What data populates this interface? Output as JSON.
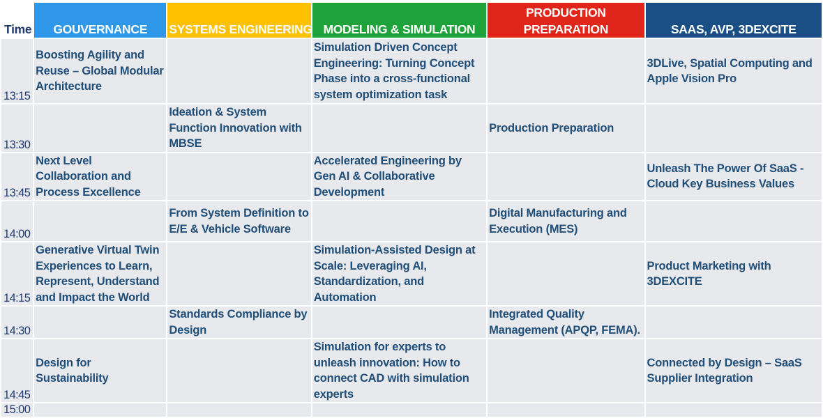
{
  "header": {
    "time": "Time",
    "tracks": [
      {
        "label": "GOUVERNANCE",
        "color": "#2e97e8"
      },
      {
        "label": "SYSTEMS ENGINEERING",
        "color": "#ffc000"
      },
      {
        "label": "MODELING & SIMULATION",
        "color": "#1ea33a"
      },
      {
        "label": "PRODUCTION PREPARATION",
        "color": "#e0251b"
      },
      {
        "label": "SAAS, AVP, 3DEXCITE",
        "color": "#1a4f86"
      }
    ]
  },
  "rows": [
    {
      "time": "13:15",
      "cells": [
        "Boosting Agility and Reuse – Global Modular Architecture",
        "",
        "Simulation Driven Concept Engineering: Turning Concept Phase into a cross-functional system optimization task",
        "",
        "3DLive, Spatial Computing and Apple Vision Pro"
      ]
    },
    {
      "time": "13:30",
      "cells": [
        "",
        "Ideation & System Function Innovation with MBSE",
        "",
        "Production Preparation",
        ""
      ]
    },
    {
      "time": "13:45",
      "cells": [
        "Next Level Collaboration and Process Excellence",
        "",
        "Accelerated Engineering by Gen AI & Collaborative Development",
        "",
        "Unleash The Power Of SaaS - Cloud Key Business Values"
      ]
    },
    {
      "time": "14:00",
      "cells": [
        "",
        "From System Definition to E/E & Vehicle Software",
        "",
        "Digital Manufacturing and Execution (MES)",
        ""
      ]
    },
    {
      "time": "14:15",
      "cells": [
        "Generative Virtual Twin Experiences to Learn, Represent, Understand and Impact the World",
        "",
        "Simulation-Assisted Design at Scale: Leveraging AI, Standardization, and Automation",
        "",
        "Product Marketing with 3DEXCITE"
      ]
    },
    {
      "time": "14:30",
      "cells": [
        "",
        "Standards Compliance by Design",
        "",
        "Integrated Quality Management (APQP, FEMA).",
        ""
      ]
    },
    {
      "time": "14:45",
      "cells": [
        "Design for Sustainability",
        "",
        "Simulation for experts to unleash innovation: How to connect CAD with simulation experts",
        "",
        "Connected by Design – SaaS Supplier Integration"
      ]
    },
    {
      "time": "15:00",
      "cells": [
        "",
        "",
        "",
        "",
        ""
      ]
    }
  ]
}
